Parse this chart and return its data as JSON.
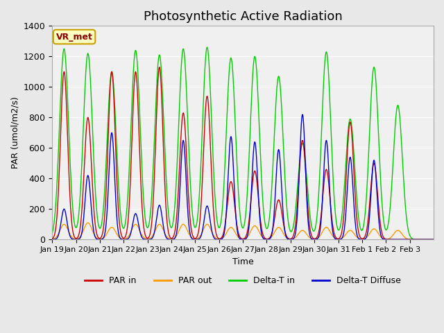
{
  "title": "Photosynthetic Active Radiation",
  "xlabel": "Time",
  "ylabel": "PAR (umol/m2/s)",
  "ylim": [
    0,
    1400
  ],
  "yticks": [
    0,
    200,
    400,
    600,
    800,
    1000,
    1200,
    1400
  ],
  "x_labels": [
    "Jan 19",
    "Jan 20",
    "Jan 21",
    "Jan 22",
    "Jan 23",
    "Jan 24",
    "Jan 25",
    "Jan 26",
    "Jan 27",
    "Jan 28",
    "Jan 29",
    "Jan 30",
    "Jan 31",
    "Feb 1",
    "Feb 2",
    "Feb 3"
  ],
  "annotation_text": "VR_met",
  "annotation_bg": "#ffffc0",
  "annotation_border": "#c8a000",
  "annotation_text_color": "#8b0000",
  "bg_color": "#e8e8e8",
  "plot_bg": "#f0f0f0",
  "legend_items": [
    "PAR in",
    "PAR out",
    "Delta-T in",
    "Delta-T Diffuse"
  ],
  "line_colors": [
    "#cc0000",
    "#ff9900",
    "#00cc00",
    "#0000cc"
  ],
  "peaks_green": [
    1250,
    1220,
    1100,
    1240,
    1210,
    1250,
    1260,
    1190,
    1200,
    1070,
    630,
    1230,
    790,
    1130,
    880,
    0
  ],
  "peaks_red": [
    1100,
    800,
    1100,
    1100,
    1130,
    830,
    940,
    380,
    450,
    260,
    650,
    460,
    770,
    500,
    0,
    0
  ],
  "peaks_orange": [
    100,
    110,
    80,
    100,
    100,
    100,
    100,
    80,
    90,
    80,
    60,
    80,
    60,
    70,
    60,
    0
  ],
  "peaks_blue": [
    200,
    420,
    700,
    170,
    225,
    650,
    220,
    675,
    640,
    590,
    820,
    650,
    540,
    520,
    0,
    0
  ],
  "grid_color": "#ffffff",
  "title_fontsize": 13
}
